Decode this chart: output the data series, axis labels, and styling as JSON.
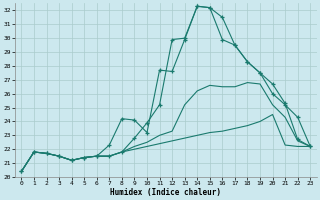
{
  "bg_color": "#cce8ee",
  "line_color": "#1a7a6e",
  "grid_color": "#b8d8dd",
  "xlim": [
    -0.5,
    23.5
  ],
  "ylim": [
    20,
    32.5
  ],
  "xticks": [
    0,
    1,
    2,
    3,
    4,
    5,
    6,
    7,
    8,
    9,
    10,
    11,
    12,
    13,
    14,
    15,
    16,
    17,
    18,
    19,
    20,
    21,
    22,
    23
  ],
  "yticks": [
    20,
    21,
    22,
    23,
    24,
    25,
    26,
    27,
    28,
    29,
    30,
    31,
    32
  ],
  "xlabel": "Humidex (Indice chaleur)",
  "curve_a_x": [
    0,
    1,
    2,
    3,
    4,
    5,
    6,
    7,
    8,
    9,
    10,
    11,
    12,
    13,
    14,
    15,
    16,
    17,
    18,
    19,
    20,
    21,
    22,
    23
  ],
  "curve_a_y": [
    20.4,
    21.8,
    21.7,
    21.5,
    21.2,
    21.4,
    21.5,
    21.5,
    21.8,
    22.0,
    22.2,
    22.4,
    22.6,
    22.8,
    23.0,
    23.2,
    23.3,
    23.5,
    23.7,
    24.0,
    24.5,
    22.3,
    22.2,
    22.2
  ],
  "curve_b_x": [
    0,
    1,
    2,
    3,
    4,
    5,
    6,
    7,
    8,
    9,
    10,
    11,
    12,
    13,
    14,
    15,
    16,
    17,
    18,
    19,
    20,
    21,
    22,
    23
  ],
  "curve_b_y": [
    20.4,
    21.8,
    21.7,
    21.5,
    21.2,
    21.4,
    21.5,
    22.3,
    24.2,
    24.1,
    23.2,
    27.7,
    27.6,
    29.9,
    32.3,
    32.2,
    31.5,
    29.5,
    28.3,
    27.5,
    26.0,
    25.2,
    24.3,
    22.2
  ],
  "curve_c_x": [
    0,
    1,
    2,
    3,
    4,
    5,
    6,
    7,
    8,
    9,
    10,
    11,
    12,
    13,
    14,
    15,
    16,
    17,
    18,
    19,
    20,
    21,
    22,
    23
  ],
  "curve_c_y": [
    20.4,
    21.8,
    21.7,
    21.5,
    21.2,
    21.4,
    21.5,
    21.5,
    21.8,
    22.8,
    23.9,
    25.2,
    29.9,
    30.0,
    32.3,
    32.2,
    29.9,
    29.5,
    28.3,
    27.5,
    26.7,
    25.3,
    22.7,
    22.2
  ],
  "curve_d_x": [
    0,
    1,
    2,
    3,
    4,
    5,
    6,
    7,
    8,
    9,
    10,
    11,
    12,
    13,
    14,
    15,
    16,
    17,
    18,
    19,
    20,
    21,
    22,
    23
  ],
  "curve_d_y": [
    20.4,
    21.8,
    21.7,
    21.5,
    21.2,
    21.4,
    21.5,
    21.5,
    21.8,
    22.2,
    22.5,
    23.0,
    23.3,
    25.2,
    26.2,
    26.6,
    26.5,
    26.5,
    26.8,
    26.7,
    25.2,
    24.3,
    22.6,
    22.2
  ]
}
